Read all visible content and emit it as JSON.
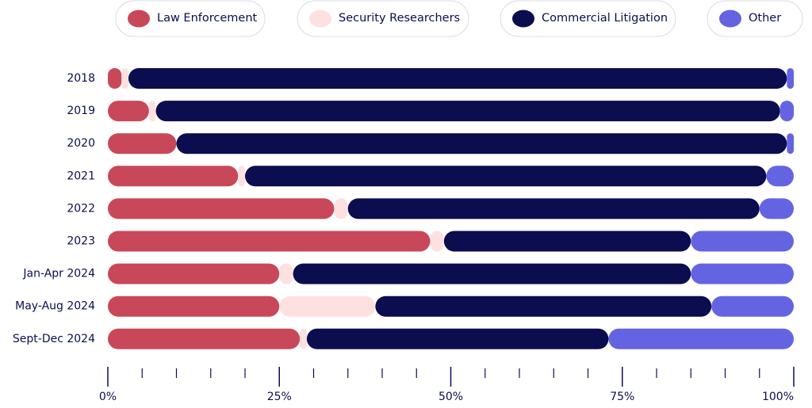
{
  "chart_data": {
    "type": "bar",
    "orientation": "horizontal",
    "stacked": true,
    "categories": [
      "2018",
      "2019",
      "2020",
      "2021",
      "2022",
      "2023",
      "Jan-Apr 2024",
      "May-Aug 2024",
      "Sept-Dec 2024"
    ],
    "series": [
      {
        "name": "Law Enforcement",
        "color": "#c8485a",
        "values": [
          2,
          6,
          10,
          19,
          33,
          47,
          25,
          25,
          28
        ]
      },
      {
        "name": "Security Researchers",
        "color": "#fde1e1",
        "values": [
          1,
          1,
          0,
          1,
          2,
          2,
          2,
          14,
          1
        ]
      },
      {
        "name": "Commercial Litigation",
        "color": "#0b0d4f",
        "values": [
          96,
          91,
          89,
          76,
          60,
          36,
          58,
          49,
          44
        ]
      },
      {
        "name": "Other",
        "color": "#6464e2",
        "values": [
          1,
          2,
          1,
          4,
          5,
          15,
          15,
          12,
          27
        ]
      }
    ],
    "xlim": [
      0,
      100
    ],
    "xticks": [
      {
        "value": 0,
        "label": "0%"
      },
      {
        "value": 25,
        "label": "25%"
      },
      {
        "value": 50,
        "label": "50%"
      },
      {
        "value": 75,
        "label": "75%"
      },
      {
        "value": 100,
        "label": "100%"
      }
    ],
    "xminorticks": [
      5,
      10,
      15,
      20,
      30,
      35,
      40,
      45,
      55,
      60,
      65,
      70,
      80,
      85,
      90,
      95
    ],
    "legend": "top"
  }
}
